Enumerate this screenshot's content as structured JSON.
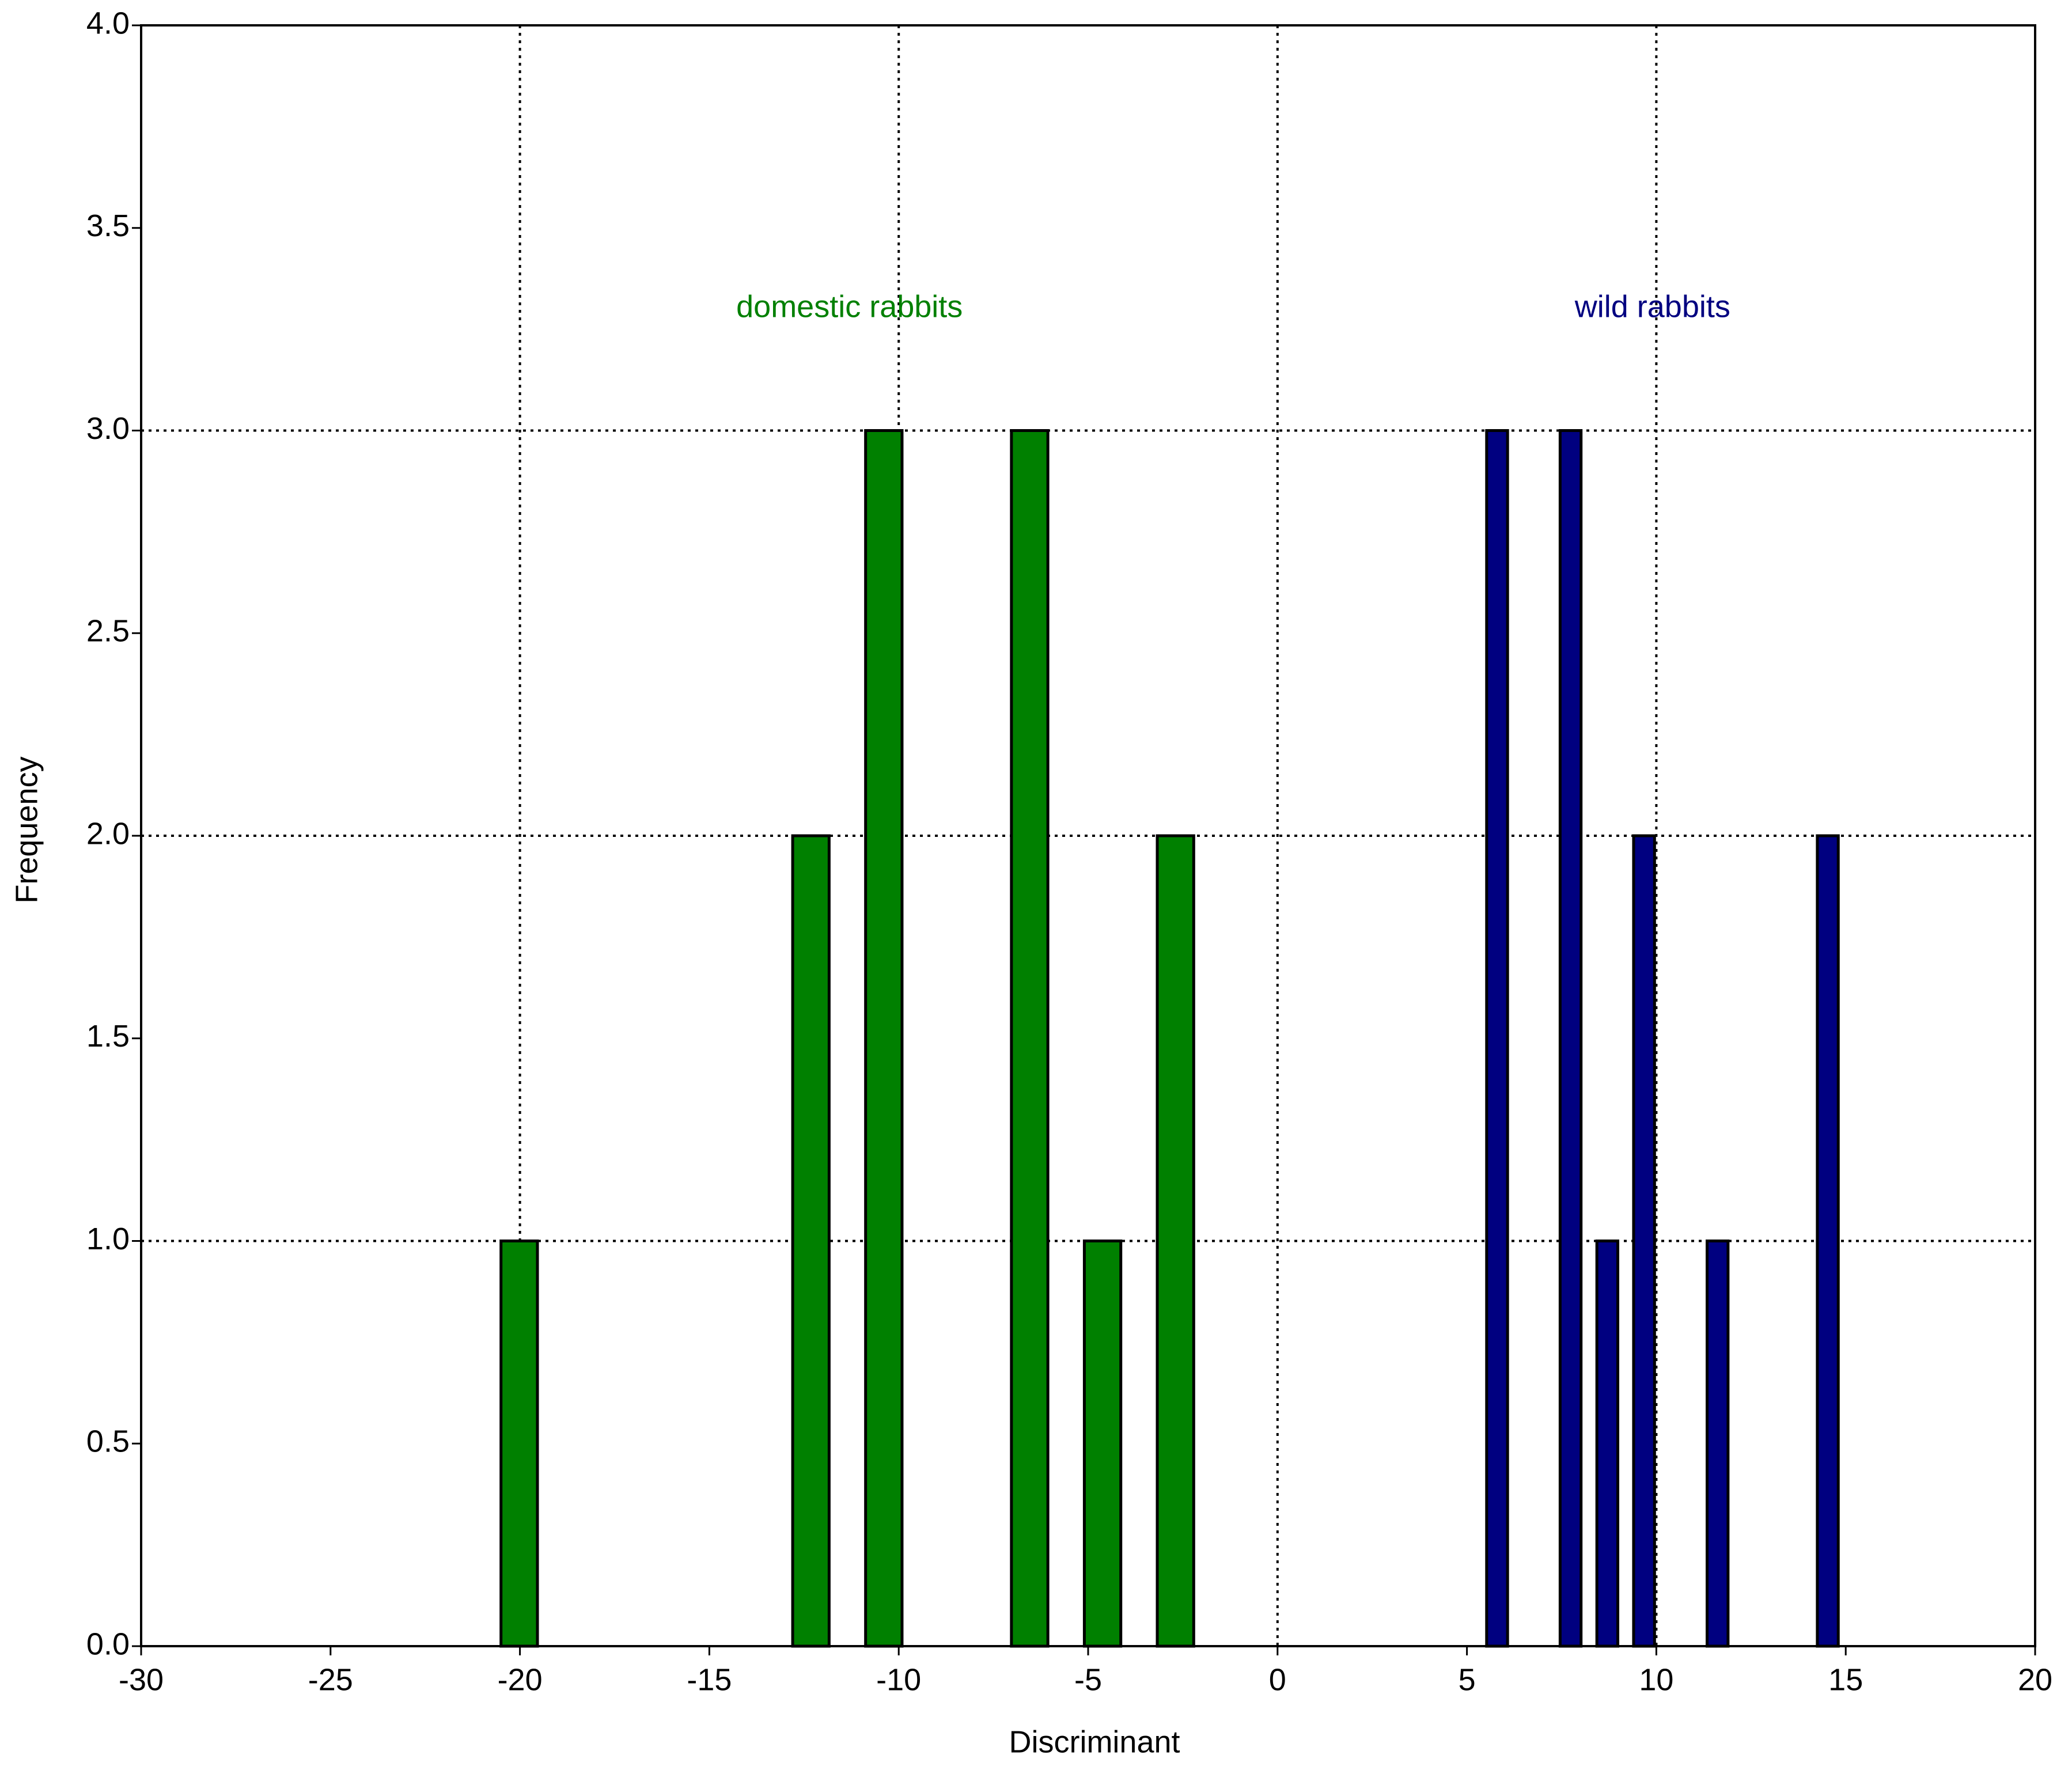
{
  "chart_data": {
    "type": "histogram",
    "xlabel": "Discriminant",
    "ylabel": "Frequency",
    "xlim": [
      -30,
      20
    ],
    "xticks": [
      -30,
      -25,
      -20,
      -15,
      -10,
      -5,
      0,
      5,
      10,
      15,
      20
    ],
    "ylim": [
      0,
      4
    ],
    "yticks": [
      {
        "value": 0,
        "label": "0.0"
      },
      0.5,
      {
        "value": 1,
        "label": "1.0"
      },
      1.5,
      {
        "value": 2,
        "label": "2.0"
      },
      2.5,
      {
        "value": 3,
        "label": "3.0"
      },
      3.5,
      {
        "value": 4,
        "label": "4.0"
      }
    ],
    "grid": true,
    "series": [
      {
        "name": "domestic rabbits",
        "color": "#008000",
        "bins": [
          -20.5,
          -18.575,
          -16.65,
          -14.725,
          -12.8,
          -10.875,
          -8.95,
          -7.025,
          -5.1,
          -3.175,
          -1.25
        ],
        "values": [
          1,
          0,
          0,
          0,
          2,
          3,
          0,
          3,
          1,
          2
        ]
      },
      {
        "name": "wild rabbits",
        "color": "#000080",
        "bins": [
          5.52,
          6.49,
          7.46,
          8.43,
          9.4,
          10.37,
          11.34,
          12.31,
          13.28,
          14.25,
          15.22
        ],
        "values": [
          3,
          0,
          3,
          1,
          2,
          0,
          1,
          0,
          0,
          2
        ]
      }
    ],
    "annotations": [
      {
        "text": "domestic rabbits",
        "x": -11.3,
        "y": 3.3,
        "color": "#008000"
      },
      {
        "text": "wild rabbits",
        "x": 9.9,
        "y": 3.3,
        "color": "#000080"
      }
    ]
  }
}
